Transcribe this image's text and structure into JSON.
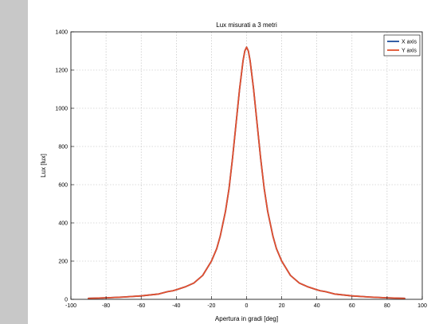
{
  "chart_data": {
    "type": "line",
    "title": "Lux misurati a  3  metri",
    "xlabel": "Apertura in gradi  [deg]",
    "ylabel": "Lux  [lux]",
    "xlim": [
      -100,
      100
    ],
    "ylim": [
      0,
      1400
    ],
    "xticks": [
      -100,
      -80,
      -60,
      -40,
      -20,
      0,
      20,
      40,
      60,
      80,
      100
    ],
    "yticks": [
      0,
      200,
      400,
      600,
      800,
      1000,
      1200,
      1400
    ],
    "grid": true,
    "legend": "top-right",
    "series": [
      {
        "name": "X axis",
        "color": "#1f4e9c",
        "x": [
          -90,
          -80,
          -70,
          -60,
          -50,
          -45,
          -42,
          -40,
          -35,
          -30,
          -25,
          -20,
          -17,
          -15,
          -12,
          -10,
          -8,
          -6,
          -4,
          -2,
          -1,
          0,
          1,
          2,
          4,
          6,
          8,
          10,
          12,
          15,
          17,
          20,
          25,
          30,
          35,
          40,
          42,
          45,
          50,
          60,
          70,
          80,
          90
        ],
        "y": [
          5,
          8,
          12,
          18,
          28,
          40,
          45,
          50,
          65,
          85,
          125,
          200,
          265,
          330,
          460,
          580,
          740,
          920,
          1100,
          1250,
          1300,
          1320,
          1300,
          1250,
          1100,
          920,
          740,
          580,
          460,
          330,
          265,
          200,
          125,
          85,
          65,
          50,
          45,
          40,
          28,
          18,
          12,
          8,
          5
        ]
      },
      {
        "name": "Y axis",
        "color": "#e2502e",
        "x": [
          -90,
          -80,
          -70,
          -60,
          -50,
          -45,
          -42,
          -40,
          -35,
          -30,
          -25,
          -20,
          -17,
          -15,
          -12,
          -10,
          -8,
          -6,
          -4,
          -2,
          -1,
          0,
          1,
          2,
          4,
          6,
          8,
          10,
          12,
          15,
          17,
          20,
          25,
          30,
          35,
          40,
          42,
          45,
          50,
          60,
          70,
          80,
          90
        ],
        "y": [
          5,
          8,
          12,
          18,
          28,
          40,
          45,
          50,
          65,
          85,
          125,
          200,
          265,
          330,
          460,
          580,
          740,
          920,
          1100,
          1250,
          1300,
          1320,
          1300,
          1250,
          1100,
          920,
          740,
          580,
          460,
          330,
          265,
          200,
          125,
          85,
          65,
          50,
          45,
          40,
          28,
          18,
          12,
          8,
          5
        ]
      }
    ]
  }
}
